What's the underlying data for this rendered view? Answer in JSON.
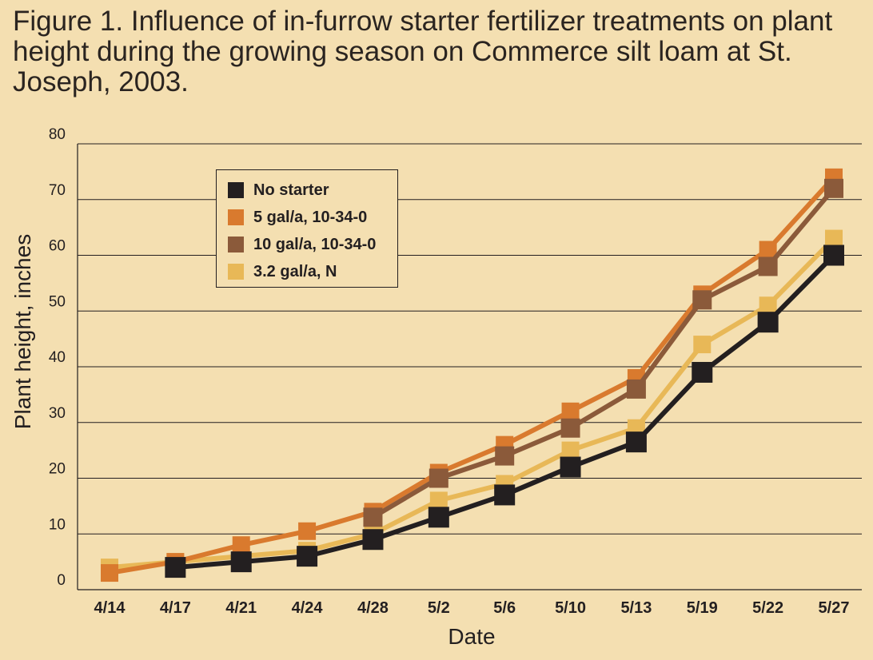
{
  "chart_data": {
    "type": "line",
    "title": "Figure 1. Influence of in-furrow starter fertilizer treatments on plant height during the growing season on Commerce silt loam at St. Joseph, 2003.",
    "xlabel": "Date",
    "ylabel": "Plant height, inches",
    "ylim": [
      0,
      80
    ],
    "yticks": [
      0,
      10,
      20,
      30,
      40,
      50,
      60,
      70,
      80
    ],
    "grid": "horizontal",
    "legend_position": "top-left",
    "categories": [
      "4/14",
      "4/17",
      "4/21",
      "4/24",
      "4/28",
      "5/2",
      "5/6",
      "5/10",
      "5/13",
      "5/19",
      "5/22",
      "5/27"
    ],
    "series": [
      {
        "name": "3.2 gal/a, N",
        "color": "#e8b857",
        "values": [
          4,
          5,
          6,
          7,
          10,
          16,
          19,
          25,
          29,
          44,
          51,
          63
        ]
      },
      {
        "name": "5 gal/a, 10-34-0",
        "color": "#d97a2e",
        "values": [
          3,
          5,
          8,
          10.5,
          14,
          21,
          26,
          32,
          38,
          53,
          61,
          74
        ]
      },
      {
        "name": "10 gal/a, 10-34-0",
        "color": "#8b5a3a",
        "values": [
          null,
          null,
          null,
          null,
          13,
          20,
          24,
          29,
          36,
          52,
          58,
          72
        ]
      },
      {
        "name": "No starter",
        "color": "#231f20",
        "values": [
          null,
          4,
          5,
          6,
          9,
          13,
          17,
          22,
          26.5,
          39,
          48,
          60
        ]
      }
    ],
    "legend_order": [
      "No starter",
      "5 gal/a, 10-34-0",
      "10 gal/a, 10-34-0",
      "3.2 gal/a, N"
    ]
  }
}
